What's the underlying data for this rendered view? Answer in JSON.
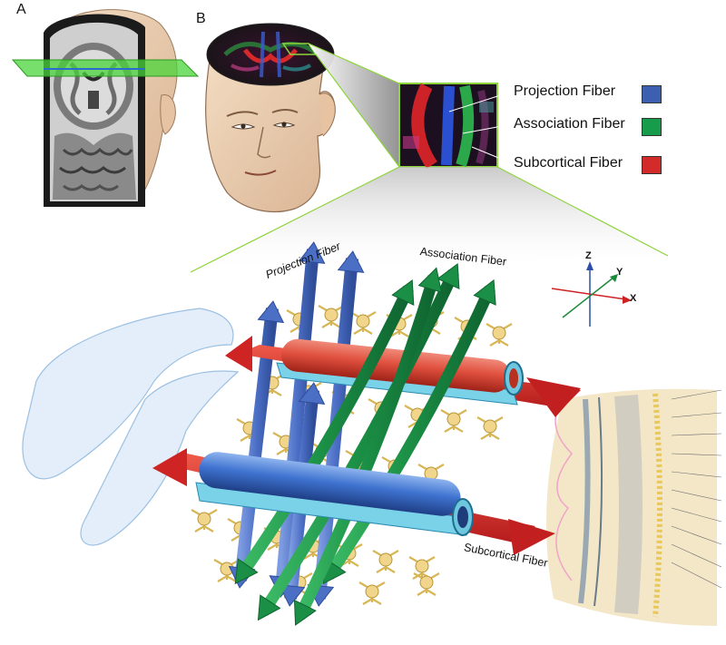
{
  "panels": {
    "a_label": "A",
    "b_label": "B"
  },
  "legend": [
    {
      "label": "Projection Fiber",
      "color": "#3d5fb0"
    },
    {
      "label": "Association Fiber",
      "color": "#169c4a"
    },
    {
      "label": "Subcortical Fiber",
      "color": "#d32a2a"
    }
  ],
  "diagram_labels": {
    "projection": "Projection Fiber",
    "association": "Association Fiber",
    "subcortical": "Subcortical Fiber"
  },
  "axes": {
    "z": "Z",
    "y": "Y",
    "x": "X"
  },
  "colors": {
    "projection": "#4f73c9",
    "association": "#1b8f45",
    "subcortical": "#d53030",
    "axis_z": "#2b4fa8",
    "axis_y": "#1a8a3a",
    "axis_x": "#cc2222",
    "plane": "#4ad43a",
    "zoom_line": "#8cd43a"
  }
}
